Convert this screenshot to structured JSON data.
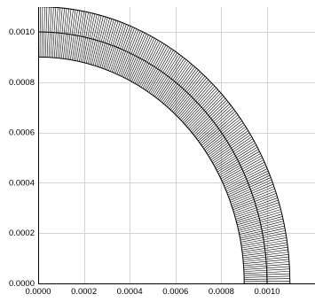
{
  "chart_data": {
    "type": "scatter",
    "title": "",
    "xlabel": "",
    "ylabel": "",
    "xlim": [
      0,
      0.00102
    ],
    "ylim": [
      0,
      0.00109
    ],
    "x_ticks": [
      "0.0000",
      "0.0002",
      "0.0004",
      "0.0006",
      "0.0008",
      "0.0010"
    ],
    "y_ticks": [
      "0.0000",
      "0.0002",
      "0.0004",
      "0.0006",
      "0.0008",
      "0.0010"
    ],
    "grid": true,
    "mesh": {
      "shape": "quarter annulus",
      "center": [
        0,
        0
      ],
      "inner_radius": 0.0009,
      "middle_radius": 0.001,
      "outer_radius": 0.0011,
      "angle_range_deg": [
        0,
        90
      ],
      "angular_divisions": 180
    },
    "colors": {
      "line": "#000000",
      "grid": "#d4d4d4",
      "background": "#ffffff"
    }
  }
}
